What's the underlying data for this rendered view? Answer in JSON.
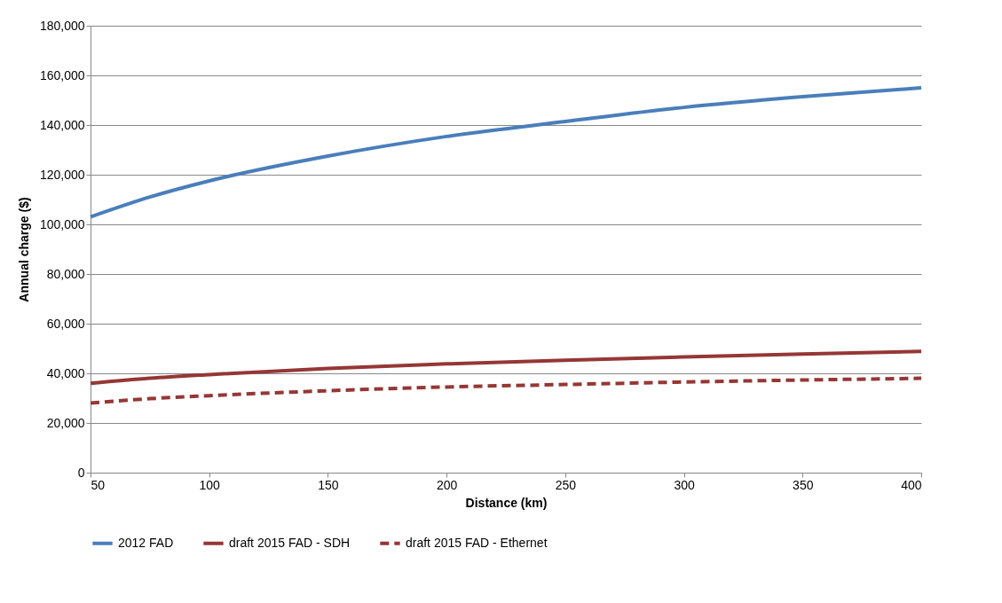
{
  "chart_data": {
    "type": "line",
    "xlabel": "Distance (km)",
    "ylabel": "Annual charge ($)",
    "x": [
      50,
      75,
      100,
      150,
      200,
      250,
      300,
      350,
      400
    ],
    "xlim": [
      50,
      400
    ],
    "xticks": [
      50,
      100,
      150,
      200,
      250,
      300,
      350,
      400
    ],
    "ylim": [
      0,
      180000
    ],
    "yticks": [
      0,
      {
        "value": 20000,
        "label": "20,000"
      },
      {
        "value": 40000,
        "label": "40,000"
      },
      {
        "value": 60000,
        "label": "60,000"
      },
      {
        "value": 80000,
        "label": "80,000"
      },
      {
        "value": 100000,
        "label": "100,000"
      },
      {
        "value": 120000,
        "label": "120,000"
      },
      {
        "value": 140000,
        "label": "140,000"
      },
      {
        "value": 160000,
        "label": "160,000"
      },
      {
        "value": 180000,
        "label": "180,000"
      }
    ],
    "grid": "y",
    "legend": "bottom",
    "marker": "none",
    "series": [
      {
        "name": "2012 FAD",
        "color": "#4a7ebb",
        "line_style": "solid",
        "values": [
          103000,
          111000,
          117500,
          127500,
          135400,
          141400,
          147100,
          151400,
          155000
        ]
      },
      {
        "name": "draft 2015 FAD - SDH",
        "color": "#953735",
        "line_style": "solid",
        "values": [
          36000,
          38000,
          39500,
          42000,
          43800,
          45300,
          46600,
          47800,
          48800
        ]
      },
      {
        "name": "draft 2015 FAD - Ethernet",
        "color": "#953735",
        "line_style": "dashed",
        "values": [
          28000,
          29800,
          31000,
          33000,
          34500,
          35500,
          36500,
          37300,
          38000
        ]
      }
    ]
  }
}
